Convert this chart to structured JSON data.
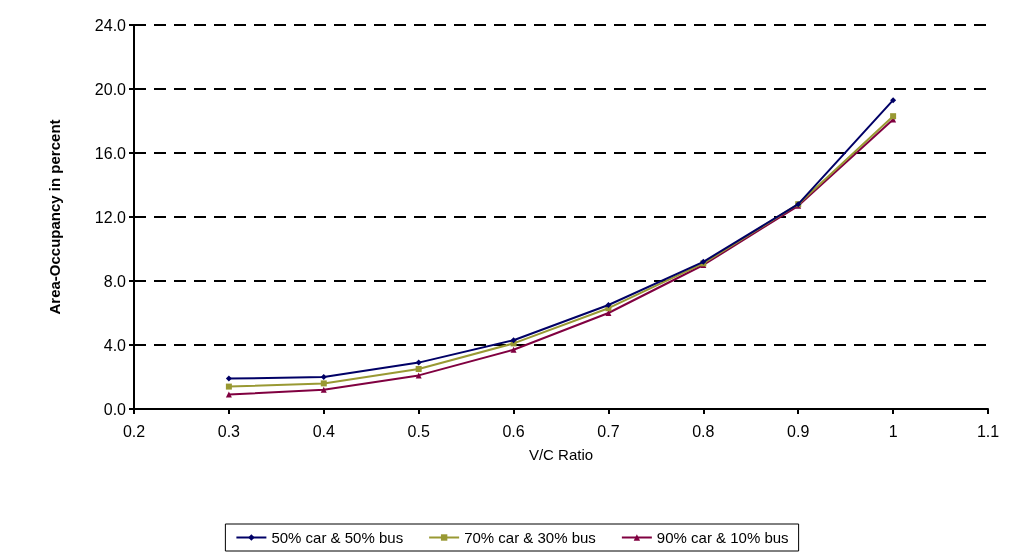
{
  "chart_data": {
    "type": "line",
    "xlabel": "V/C Ratio",
    "ylabel": "Area-Occupancy in percent",
    "x": [
      0.3,
      0.4,
      0.5,
      0.6,
      0.7,
      0.8,
      0.9,
      1.0
    ],
    "series": [
      {
        "name": "50% car & 50% bus",
        "color": "#000066",
        "marker": "diamond",
        "values": [
          1.9,
          2.0,
          2.9,
          4.3,
          6.5,
          9.2,
          12.8,
          19.3
        ]
      },
      {
        "name": "70% car & 30% bus",
        "color": "#999933",
        "marker": "square",
        "values": [
          1.4,
          1.6,
          2.5,
          4.1,
          6.3,
          9.1,
          12.8,
          18.3
        ]
      },
      {
        "name": "90% car & 10% bus",
        "color": "#800040",
        "marker": "triangle",
        "values": [
          0.9,
          1.2,
          2.1,
          3.7,
          6.0,
          9.0,
          12.7,
          18.1
        ]
      }
    ],
    "xlim": [
      0.2,
      1.1
    ],
    "xticks": [
      0.2,
      0.3,
      0.4,
      0.5,
      0.6,
      0.7,
      0.8,
      0.9,
      {
        "value": 1.0,
        "label": "1"
      },
      1.1
    ],
    "ylim": [
      0,
      24
    ],
    "yticks": [
      {
        "value": 0,
        "label": "0.0"
      },
      {
        "value": 4,
        "label": "4.0"
      },
      {
        "value": 8,
        "label": "8.0"
      },
      {
        "value": 12,
        "label": "12.0"
      },
      {
        "value": 16,
        "label": "16.0"
      },
      {
        "value": 20,
        "label": "20.0"
      },
      {
        "value": 24,
        "label": "24.0"
      }
    ],
    "grid": "y",
    "legend": "bottom",
    "line_style": "solid"
  }
}
